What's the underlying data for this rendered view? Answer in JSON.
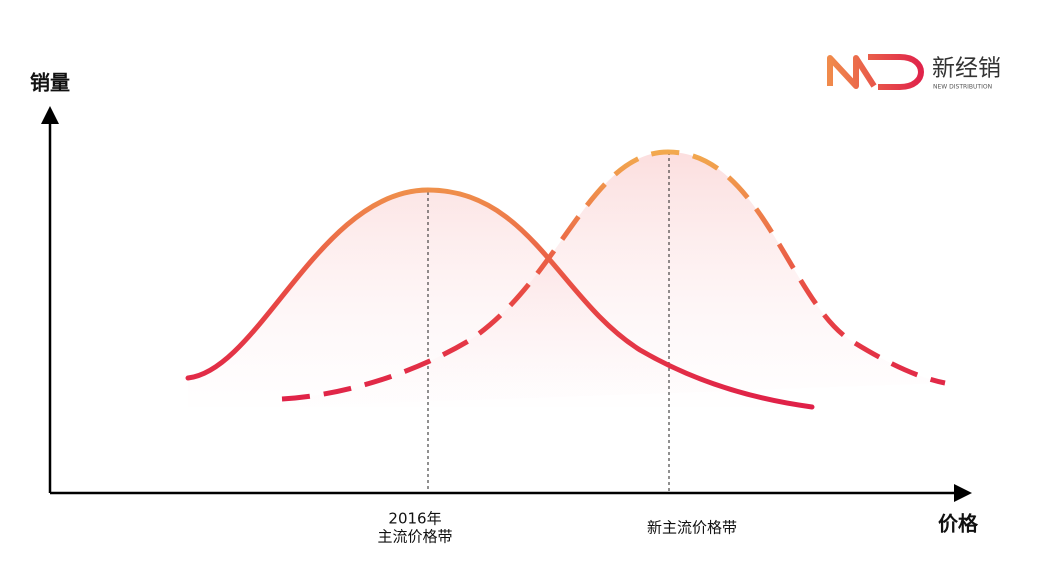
{
  "axes": {
    "y_label": "销量",
    "x_label": "价格"
  },
  "markers": [
    {
      "label_lines": [
        "2016年",
        "主流价格带"
      ]
    },
    {
      "label_lines": [
        "新主流价格带"
      ]
    }
  ],
  "logo": {
    "name": "新经销",
    "tagline": "NEW DISTRIBUTION"
  }
}
